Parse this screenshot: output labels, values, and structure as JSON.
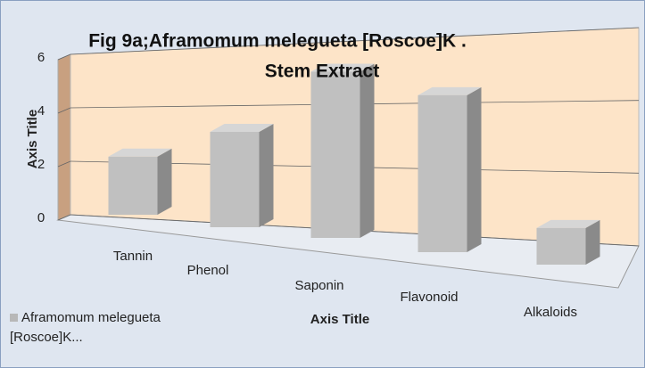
{
  "chart_data": {
    "type": "bar3d",
    "title": [
      "Fig 9a;Aframomum melegueta [Roscoe]K .",
      "Stem Extract"
    ],
    "y_axis_title": "Axis Title",
    "x_axis_title": "Axis Title",
    "categories": [
      "Tannin",
      "Phenol",
      "Saponin",
      "Flavonoid",
      "Alkaloids"
    ],
    "series": [
      {
        "name": "Aframomum melegueta [Roscoe]K...",
        "color": "#c0c0c0",
        "values": [
          2.2,
          3.4,
          5.6,
          5.0,
          1.1
        ]
      }
    ],
    "ylim": [
      0,
      6
    ],
    "yticks": [
      0,
      2,
      4,
      6
    ],
    "grid": true
  }
}
